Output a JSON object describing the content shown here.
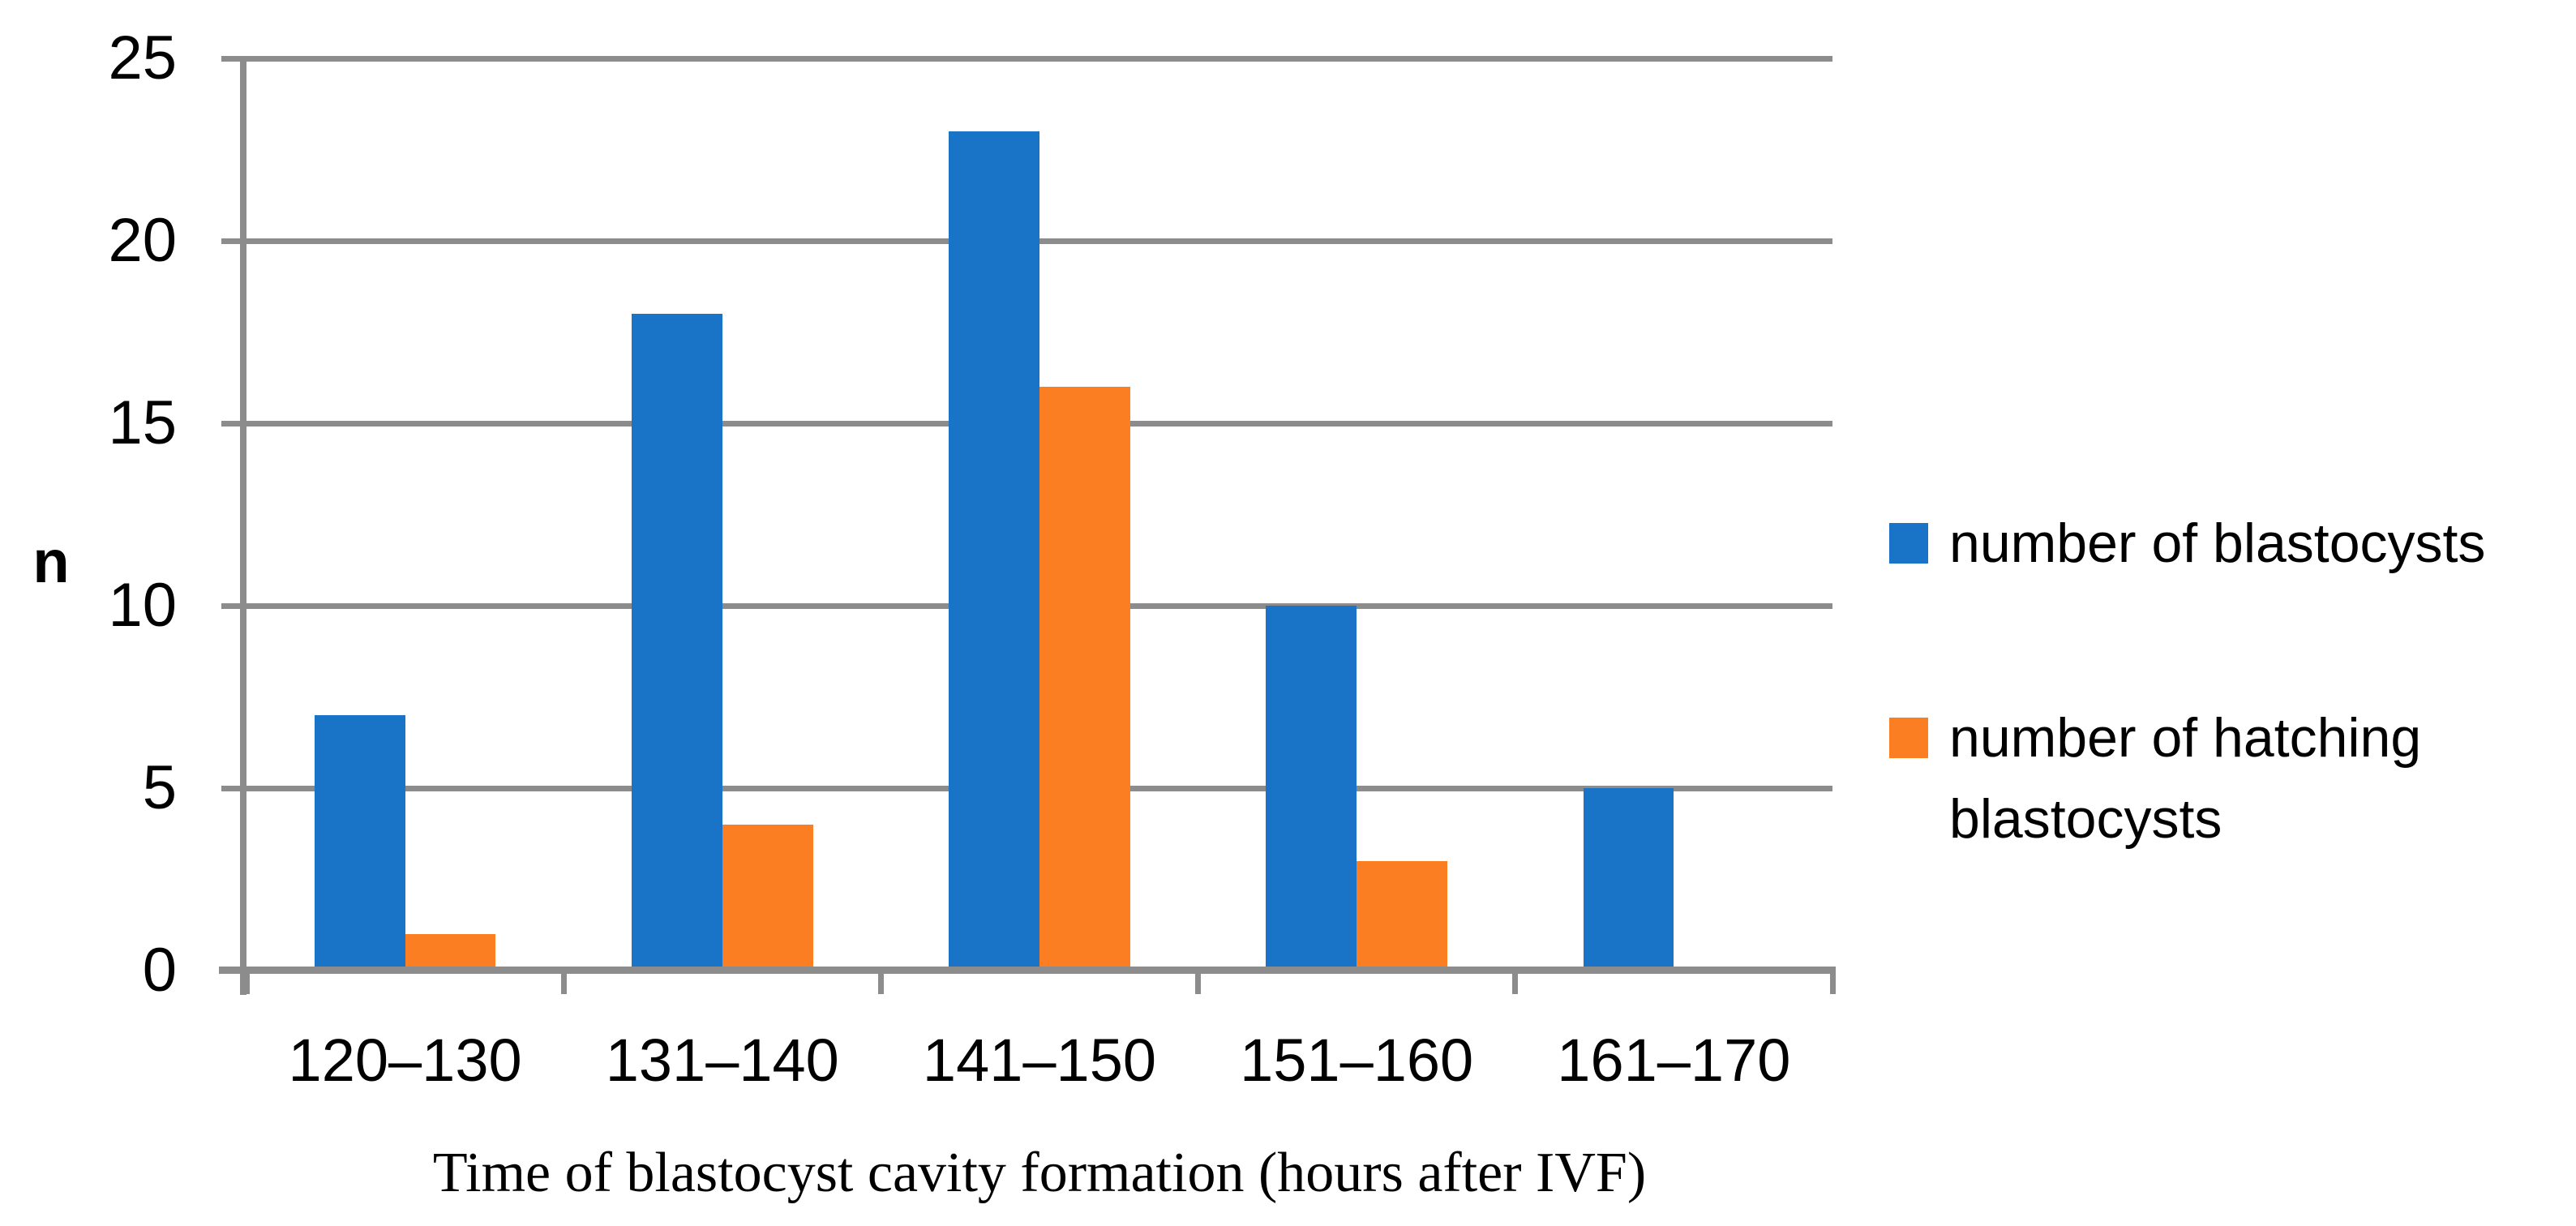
{
  "chart_data": {
    "type": "bar",
    "title": "",
    "categories": [
      "120–130",
      "131–140",
      "141–150",
      "151–160",
      "161–170"
    ],
    "series": [
      {
        "name": "number of blastocysts",
        "color": "#1974C8",
        "values": [
          7,
          18,
          23,
          10,
          5
        ]
      },
      {
        "name": "number of hatching blastocysts",
        "color": "#FC7E23",
        "values": [
          1,
          4,
          16,
          3,
          0
        ]
      }
    ],
    "xlabel": "Time of blastocyst cavity formation (hours after IVF)",
    "ylabel": "n",
    "ylim": [
      0,
      25
    ],
    "yticks": [
      0,
      5,
      10,
      15,
      20,
      25
    ],
    "grid": true,
    "legend_position": "right",
    "gridline_color": "#8C8C8C",
    "axis_color": "#8C8C8C",
    "text_color": "#000000",
    "background_color": "#FFFFFF"
  }
}
